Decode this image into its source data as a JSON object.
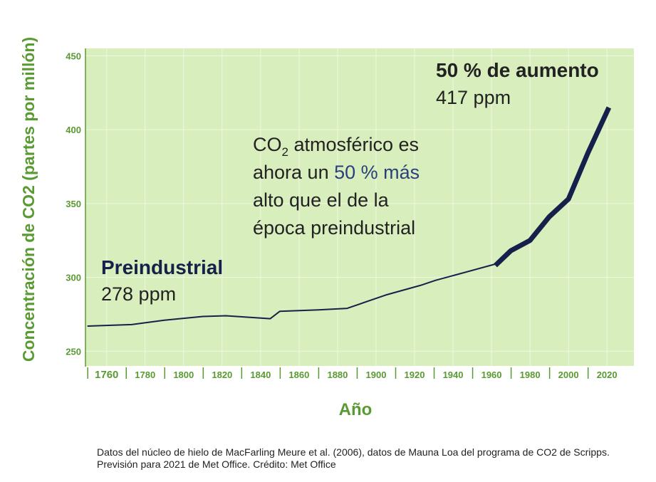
{
  "chart_data": {
    "type": "line",
    "title": "",
    "xlabel": "Año",
    "ylabel": "Concentración de CO2 (partes por millón)",
    "ylim": [
      240,
      455
    ],
    "xlim": [
      1749,
      2034
    ],
    "y_ticks": [
      250,
      300,
      350,
      400,
      450
    ],
    "x_ticks": [
      1760,
      1780,
      1800,
      1820,
      1840,
      1860,
      1880,
      1900,
      1920,
      1940,
      1960,
      1980,
      2000,
      2020
    ],
    "grid": true,
    "series": [
      {
        "name": "",
        "x": [
          1750,
          1773,
          1790,
          1810,
          1822,
          1845,
          1850,
          1870,
          1885,
          1905,
          1923,
          1931,
          1941,
          1962
        ],
        "y": [
          267,
          268,
          271,
          273.5,
          274,
          272,
          277,
          278,
          279,
          288,
          294.5,
          298,
          301.5,
          309
        ],
        "color": "#15214a",
        "width": 2
      },
      {
        "name": "",
        "x": [
          1962,
          1970,
          1980,
          1990,
          2000,
          2010,
          2021
        ],
        "y": [
          308,
          318,
          325,
          341,
          353,
          384,
          415
        ],
        "color": "#15214a",
        "width": 7
      }
    ],
    "annotations": {
      "preindustrial_label": "Preindustrial",
      "preindustrial_value": "278 ppm",
      "increase_label": "50 % de aumento",
      "increase_value": "417 ppm",
      "note_line1_a": "CO",
      "note_line1_sub": "2",
      "note_line1_b": " atmosférico es",
      "note_line2_a": "ahora un ",
      "note_line2_highlight": "50 % más",
      "note_line3": "alto que el de la",
      "note_line4": "época preindustrial"
    },
    "caption": "Datos del núcleo de hielo de MacFarling Meure et al. (2006), datos de Mauna Loa del programa de CO2 de Scripps. Previsión para 2021 de Met Office. Crédito: Met Office",
    "colors": {
      "plot_background": "#d9eebd",
      "axis_text": "#5a9a32",
      "line": "#15214a",
      "highlight": "#2b3f7a",
      "text": "#222222"
    }
  }
}
